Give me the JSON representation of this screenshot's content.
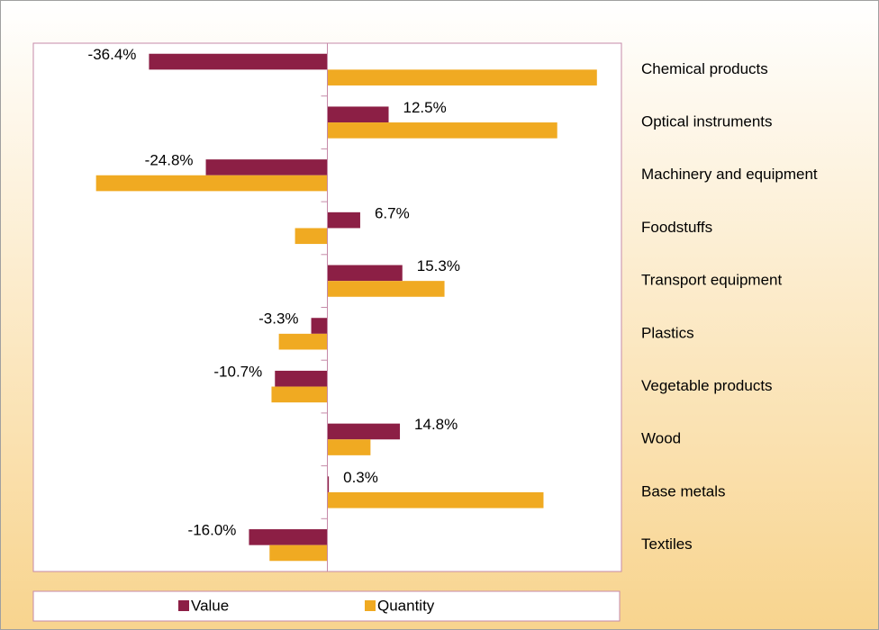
{
  "chart_data": {
    "type": "bar",
    "orientation": "horizontal",
    "categories": [
      "Chemical products",
      "Optical instruments",
      "Machinery and equipment",
      "Foodstuffs",
      "Transport equipment",
      "Plastics",
      "Vegetable products",
      "Wood",
      "Base metals",
      "Textiles"
    ],
    "series": [
      {
        "name": "Value",
        "color": "#8c1f45",
        "values": [
          -36.4,
          12.5,
          -24.8,
          6.7,
          15.3,
          -3.3,
          -10.7,
          14.8,
          0.3,
          -16.0
        ],
        "value_labels": [
          "-36.4%",
          "12.5%",
          "-24.8%",
          "6.7%",
          "15.3%",
          "-3.3%",
          "-10.7%",
          "14.8%",
          "0.3%",
          "-16.0%"
        ]
      },
      {
        "name": "Quantity",
        "color": "#f0aa22",
        "values": [
          55.0,
          46.9,
          -47.2,
          -6.6,
          23.9,
          -9.9,
          -11.4,
          8.8,
          44.1,
          -11.8
        ]
      }
    ],
    "xlim": [
      -60,
      60
    ],
    "legend": "bottom"
  }
}
